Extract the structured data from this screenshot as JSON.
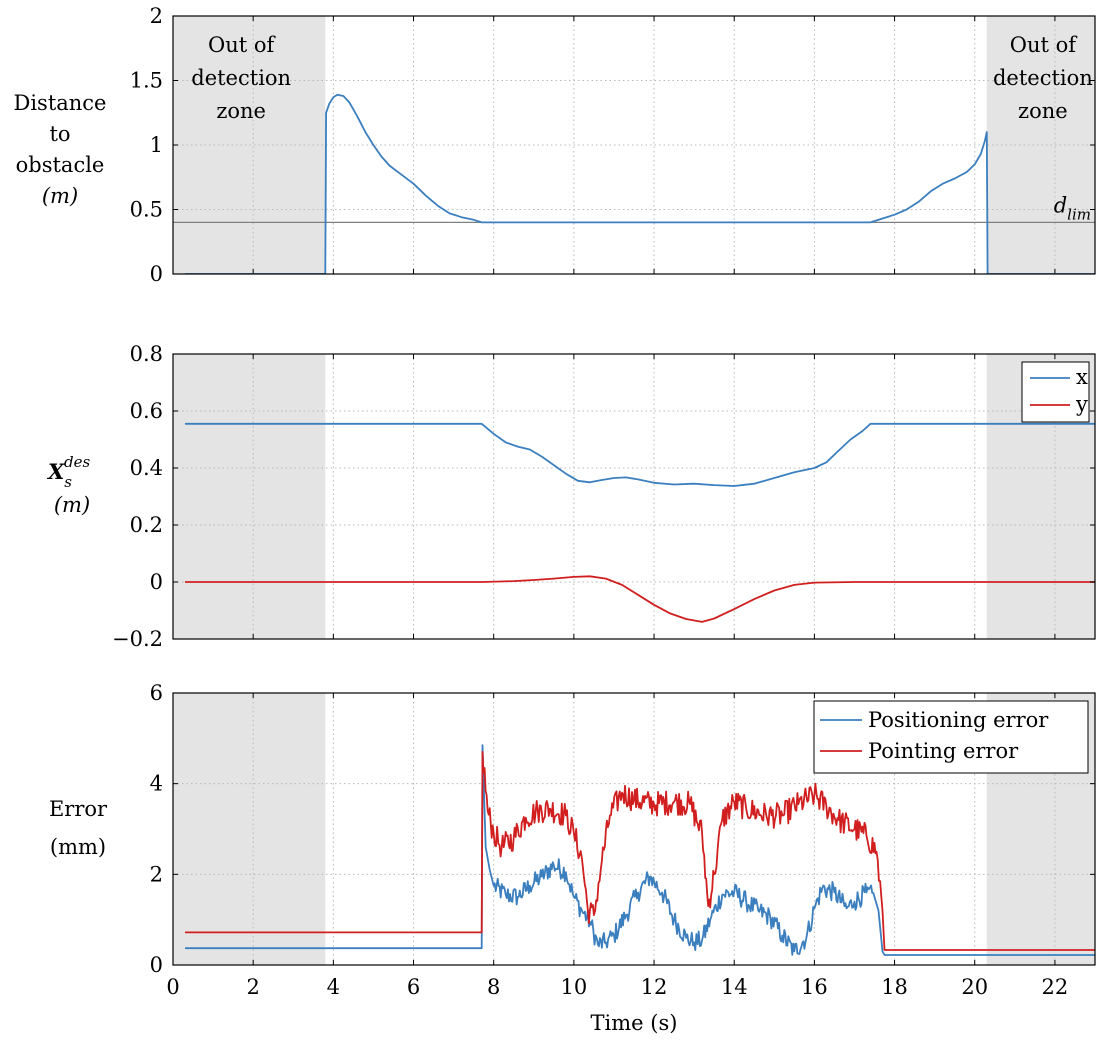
{
  "colors": {
    "blue": "#3b7fbf",
    "red": "#d11f1f",
    "shade": "#e4e4e4",
    "grid": "#b9b9b9",
    "limit_line": "#808080"
  },
  "x_axis": {
    "label": "Time (s)",
    "min": 0,
    "max": 23,
    "ticks": [
      0,
      2,
      4,
      6,
      8,
      10,
      12,
      14,
      16,
      18,
      20,
      22
    ]
  },
  "shaded_regions": [
    [
      0,
      3.8
    ],
    [
      20.3,
      23
    ]
  ],
  "chart_data": [
    {
      "type": "line",
      "ylabel_lines": [
        "Distance",
        "to",
        "obstacle",
        "(m)"
      ],
      "ylim": [
        0,
        2
      ],
      "yticks": [
        0,
        0.5,
        1,
        1.5,
        2
      ],
      "grid": true,
      "annotations": {
        "left_zone": [
          "Out of",
          "detection",
          "zone"
        ],
        "right_zone": [
          "Out of",
          "detection",
          "zone"
        ],
        "limit_label": "d",
        "limit_sub": "lim",
        "limit_value": 0.4
      },
      "series": [
        {
          "color": "blue",
          "points": [
            [
              0.3,
              0
            ],
            [
              3.8,
              0
            ],
            [
              3.82,
              1.25
            ],
            [
              3.9,
              1.32
            ],
            [
              4.0,
              1.37
            ],
            [
              4.1,
              1.39
            ],
            [
              4.25,
              1.38
            ],
            [
              4.4,
              1.33
            ],
            [
              4.6,
              1.22
            ],
            [
              4.8,
              1.1
            ],
            [
              5.0,
              1.0
            ],
            [
              5.2,
              0.91
            ],
            [
              5.4,
              0.84
            ],
            [
              5.7,
              0.77
            ],
            [
              6.0,
              0.7
            ],
            [
              6.3,
              0.61
            ],
            [
              6.6,
              0.53
            ],
            [
              6.9,
              0.47
            ],
            [
              7.2,
              0.44
            ],
            [
              7.5,
              0.42
            ],
            [
              7.7,
              0.4
            ],
            [
              8.5,
              0.4
            ],
            [
              10,
              0.4
            ],
            [
              12,
              0.4
            ],
            [
              14,
              0.4
            ],
            [
              16,
              0.4
            ],
            [
              17.4,
              0.4
            ],
            [
              17.7,
              0.43
            ],
            [
              18.0,
              0.46
            ],
            [
              18.3,
              0.5
            ],
            [
              18.6,
              0.56
            ],
            [
              18.9,
              0.64
            ],
            [
              19.2,
              0.7
            ],
            [
              19.5,
              0.74
            ],
            [
              19.8,
              0.79
            ],
            [
              20.0,
              0.85
            ],
            [
              20.15,
              0.93
            ],
            [
              20.25,
              1.03
            ],
            [
              20.3,
              1.1
            ],
            [
              20.32,
              0
            ],
            [
              23,
              0
            ]
          ]
        }
      ]
    },
    {
      "type": "line",
      "ylabel_main": "X",
      "ylabel_sub": "s",
      "ylabel_sup": "des",
      "ylabel_unit": "(m)",
      "ylim": [
        -0.2,
        0.8
      ],
      "yticks": [
        -0.2,
        0,
        0.2,
        0.4,
        0.6,
        0.8
      ],
      "ytick_labels": [
        "−0.2",
        "0",
        "0.2",
        "0.4",
        "0.6",
        "0.8"
      ],
      "grid": true,
      "legend": {
        "position": "top-right",
        "entries": [
          "x",
          "y"
        ]
      },
      "series": [
        {
          "name": "x",
          "color": "blue",
          "points": [
            [
              0.3,
              0.555
            ],
            [
              7.7,
              0.555
            ],
            [
              8.0,
              0.52
            ],
            [
              8.3,
              0.49
            ],
            [
              8.6,
              0.475
            ],
            [
              8.9,
              0.465
            ],
            [
              9.2,
              0.44
            ],
            [
              9.5,
              0.41
            ],
            [
              9.8,
              0.38
            ],
            [
              10.1,
              0.355
            ],
            [
              10.4,
              0.35
            ],
            [
              10.7,
              0.358
            ],
            [
              11.0,
              0.365
            ],
            [
              11.3,
              0.367
            ],
            [
              11.6,
              0.36
            ],
            [
              12.0,
              0.348
            ],
            [
              12.5,
              0.342
            ],
            [
              13.0,
              0.345
            ],
            [
              13.5,
              0.34
            ],
            [
              14.0,
              0.337
            ],
            [
              14.5,
              0.345
            ],
            [
              15.0,
              0.365
            ],
            [
              15.5,
              0.385
            ],
            [
              16.0,
              0.4
            ],
            [
              16.3,
              0.42
            ],
            [
              16.6,
              0.46
            ],
            [
              16.9,
              0.5
            ],
            [
              17.2,
              0.53
            ],
            [
              17.4,
              0.555
            ],
            [
              23,
              0.555
            ]
          ]
        },
        {
          "name": "y",
          "color": "red",
          "points": [
            [
              0.3,
              0.0
            ],
            [
              7.7,
              0.0
            ],
            [
              8.5,
              0.003
            ],
            [
              9.0,
              0.007
            ],
            [
              9.5,
              0.012
            ],
            [
              10.0,
              0.018
            ],
            [
              10.4,
              0.02
            ],
            [
              10.8,
              0.012
            ],
            [
              11.2,
              -0.01
            ],
            [
              11.6,
              -0.045
            ],
            [
              12.0,
              -0.08
            ],
            [
              12.4,
              -0.11
            ],
            [
              12.8,
              -0.13
            ],
            [
              13.2,
              -0.14
            ],
            [
              13.5,
              -0.128
            ],
            [
              14.0,
              -0.095
            ],
            [
              14.5,
              -0.06
            ],
            [
              15.0,
              -0.03
            ],
            [
              15.5,
              -0.01
            ],
            [
              16.0,
              -0.002
            ],
            [
              17.0,
              0.0
            ],
            [
              23,
              0.0
            ]
          ]
        }
      ]
    },
    {
      "type": "line",
      "ylabel_lines": [
        "Error",
        "(mm)"
      ],
      "ylim": [
        0,
        6
      ],
      "yticks": [
        0,
        2,
        4,
        6
      ],
      "grid": true,
      "legend": {
        "position": "top-right",
        "entries": [
          "Positioning error",
          "Pointing error"
        ]
      },
      "series": [
        {
          "name": "Positioning error",
          "color": "blue",
          "noise": 0.22,
          "points": [
            [
              0.3,
              0.37
            ],
            [
              7.7,
              0.37
            ],
            [
              7.72,
              4.85
            ],
            [
              7.8,
              2.6
            ],
            [
              7.9,
              2.1
            ],
            [
              8.0,
              1.75
            ],
            [
              8.3,
              1.55
            ],
            [
              8.6,
              1.5
            ],
            [
              8.9,
              1.75
            ],
            [
              9.2,
              1.95
            ],
            [
              9.5,
              2.2
            ],
            [
              9.8,
              2.05
            ],
            [
              10.0,
              1.5
            ],
            [
              10.2,
              1.2
            ],
            [
              10.4,
              0.95
            ],
            [
              10.6,
              0.45
            ],
            [
              10.8,
              0.5
            ],
            [
              11.0,
              0.65
            ],
            [
              11.3,
              1.1
            ],
            [
              11.6,
              1.6
            ],
            [
              11.9,
              1.95
            ],
            [
              12.2,
              1.6
            ],
            [
              12.5,
              1.0
            ],
            [
              12.8,
              0.6
            ],
            [
              13.0,
              0.5
            ],
            [
              13.2,
              0.55
            ],
            [
              13.4,
              1.0
            ],
            [
              13.7,
              1.55
            ],
            [
              14.0,
              1.6
            ],
            [
              14.3,
              1.4
            ],
            [
              14.6,
              1.2
            ],
            [
              14.9,
              1.05
            ],
            [
              15.2,
              0.65
            ],
            [
              15.5,
              0.3
            ],
            [
              15.8,
              0.6
            ],
            [
              16.0,
              1.25
            ],
            [
              16.2,
              1.7
            ],
            [
              16.5,
              1.6
            ],
            [
              16.8,
              1.25
            ],
            [
              17.0,
              1.4
            ],
            [
              17.3,
              1.6
            ],
            [
              17.5,
              1.5
            ],
            [
              17.6,
              1.2
            ],
            [
              17.7,
              0.3
            ],
            [
              17.75,
              0.22
            ],
            [
              23,
              0.22
            ]
          ]
        },
        {
          "name": "Pointing error",
          "color": "red",
          "noise": 0.28,
          "points": [
            [
              0.3,
              0.72
            ],
            [
              7.7,
              0.72
            ],
            [
              7.72,
              4.7
            ],
            [
              7.85,
              3.4
            ],
            [
              8.0,
              2.9
            ],
            [
              8.2,
              2.6
            ],
            [
              8.5,
              2.8
            ],
            [
              8.8,
              3.25
            ],
            [
              9.1,
              3.4
            ],
            [
              9.4,
              3.45
            ],
            [
              9.8,
              3.3
            ],
            [
              10.0,
              2.9
            ],
            [
              10.2,
              2.35
            ],
            [
              10.35,
              1.2
            ],
            [
              10.5,
              1.1
            ],
            [
              10.7,
              2.3
            ],
            [
              10.9,
              3.3
            ],
            [
              11.2,
              3.8
            ],
            [
              11.5,
              3.65
            ],
            [
              12.0,
              3.55
            ],
            [
              12.5,
              3.6
            ],
            [
              12.9,
              3.55
            ],
            [
              13.2,
              2.9
            ],
            [
              13.35,
              1.3
            ],
            [
              13.5,
              2.0
            ],
            [
              13.7,
              3.2
            ],
            [
              14.0,
              3.6
            ],
            [
              14.3,
              3.45
            ],
            [
              14.8,
              3.3
            ],
            [
              15.2,
              3.3
            ],
            [
              15.6,
              3.55
            ],
            [
              16.0,
              3.75
            ],
            [
              16.3,
              3.5
            ],
            [
              16.6,
              3.2
            ],
            [
              17.0,
              3.0
            ],
            [
              17.3,
              2.85
            ],
            [
              17.55,
              2.5
            ],
            [
              17.7,
              1.2
            ],
            [
              17.75,
              0.33
            ],
            [
              23,
              0.33
            ]
          ]
        }
      ]
    }
  ]
}
